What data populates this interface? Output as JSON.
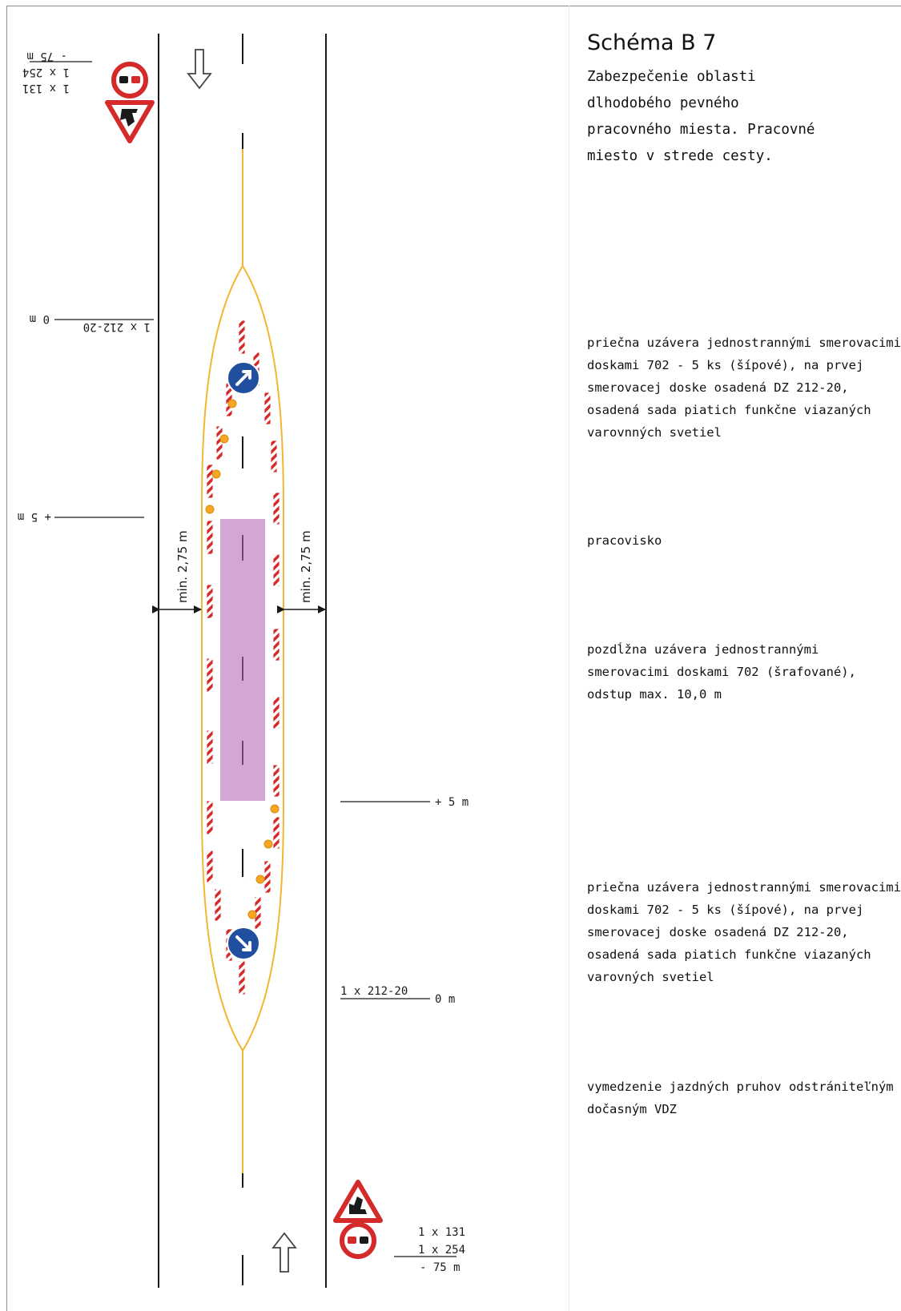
{
  "title": "Schéma B 7",
  "subtitle": "Zabezpečenie oblasti dlhodobého pevného pracovného miesta. Pracovné miesto v strede cesty.",
  "notes": {
    "entry_closure": "priečna uzávera jednostrannými smerovacimi doskami 702 - 5 ks (šípové), na prvej smerovacej doske osadená DZ 212-20, osadená sada piatich funkčne viazaných varovnných svetiel",
    "work_area": "pracovisko",
    "longitudinal_closure": "pozdĺžna uzávera jednostrannými smerovacimi doskami 702 (šrafované), odstup max. 10,0 m",
    "exit_closure": "priečna uzávera jednostrannými smerovacimi doskami 702 - 5 ks (šípové), na prvej smerovacej doske osadená DZ 212-20, osadená sada piatich funkčne viazaných varovných svetiel",
    "lane_marking": "vymedzenie jazdných pruhov odstrániteľným dočasným VDZ"
  },
  "dimensions": {
    "left_lane": "min. 2,75 m",
    "right_lane": "min. 2,75 m"
  },
  "labels_upper": {
    "signs": [
      "1 x 131",
      "1 x 254"
    ],
    "distance": "- 75 m",
    "closure_sign": "1 x 212-20",
    "zero": "0 m",
    "plus_five": "+ 5 m"
  },
  "labels_lower": {
    "signs": [
      "1 x 131",
      "1 x 254"
    ],
    "distance": "- 75 m",
    "closure_sign": "1 x 212-20",
    "zero": "0 m",
    "plus_five": "+ 5 m"
  },
  "colors": {
    "edge_line": "#1a1a1a",
    "temporary_marking": "#f2b632",
    "work_area": "#c890c8",
    "barrier_red": "#d42a2a",
    "mandatory_sign": "#1f4f9e",
    "warning_light": "#f6a623"
  }
}
